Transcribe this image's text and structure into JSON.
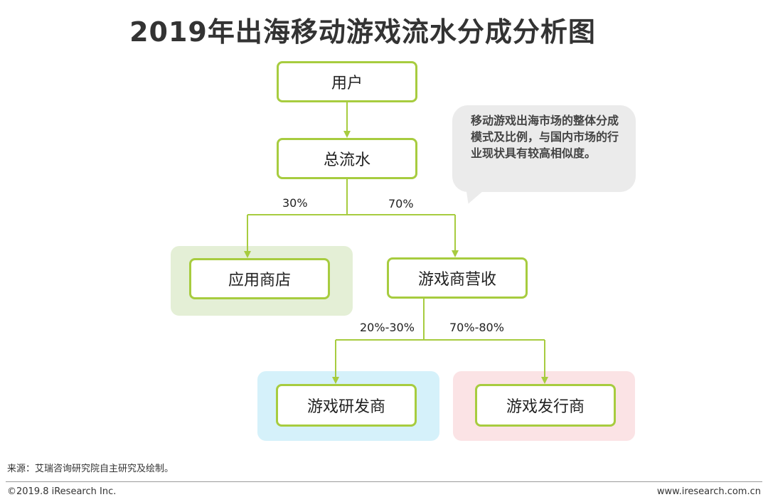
{
  "title": "2019年出海移动游戏流水分成分析图",
  "nodes": {
    "user": "用户",
    "total_revenue": "总流水",
    "app_store": "应用商店",
    "game_revenue": "游戏商营收",
    "developer": "游戏研发商",
    "publisher": "游戏发行商"
  },
  "edges": {
    "store_share": "30%",
    "game_share": "70%",
    "developer_share": "20%-30%",
    "publisher_share": "70%-80%"
  },
  "callout": "移动游戏出海市场的整体分成模式及比例，与国内市场的行业现状具有较高相似度。",
  "source": "来源：艾瑞咨询研究院自主研究及绘制。",
  "footer": {
    "copyright": "©2019.8 iResearch Inc.",
    "website": "www.iresearch.com.cn"
  },
  "colors": {
    "border": "#a7cc3f",
    "store_panel": "#e4efd6",
    "developer_panel": "#d5f1fa",
    "publisher_panel": "#fbe3e5"
  }
}
